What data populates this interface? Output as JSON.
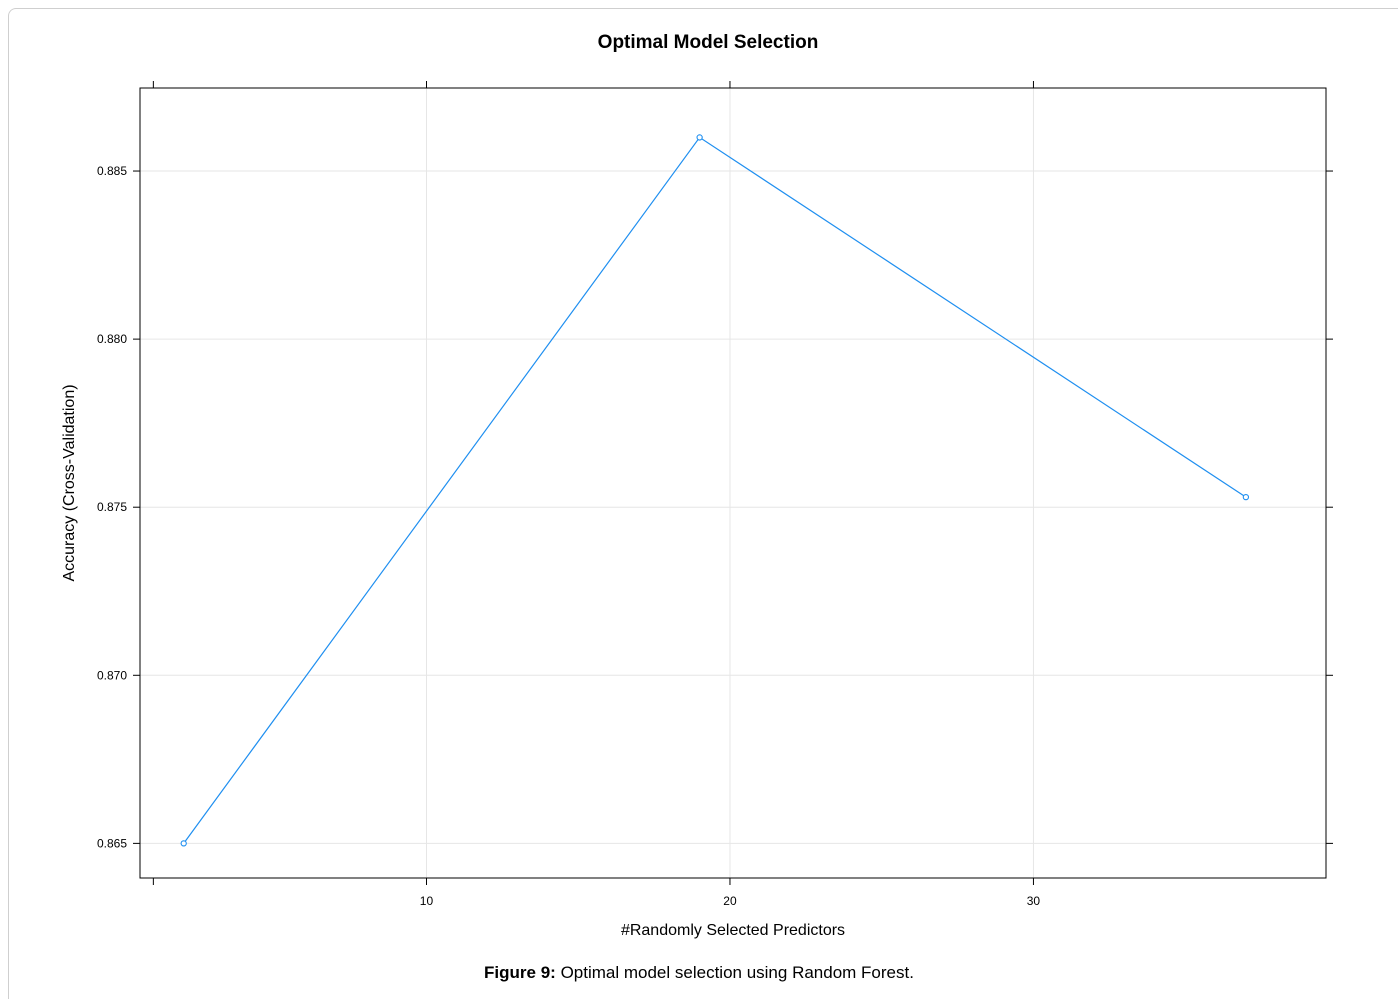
{
  "caption": {
    "label": "Figure 9:",
    "text": " Optimal model selection using Random Forest."
  },
  "chart_data": {
    "type": "line",
    "title": "Optimal Model Selection",
    "xlabel": "#Randomly Selected Predictors",
    "ylabel": "Accuracy (Cross-Validation)",
    "x": [
      2,
      19,
      37
    ],
    "series": [
      {
        "values": [
          0.865,
          0.886,
          0.8753
        ]
      }
    ],
    "xlim": [
      0.56,
      39.64
    ],
    "ylim": [
      0.86397,
      0.88747
    ],
    "xticks": [
      10,
      20,
      30
    ],
    "xtick_labels": [
      "10",
      "20",
      "30"
    ],
    "yticks": [
      0.865,
      0.87,
      0.875,
      0.88,
      0.885
    ],
    "ytick_labels": [
      "0.865",
      "0.870",
      "0.875",
      "0.880",
      "0.885"
    ],
    "grid": true,
    "marker": "open-circle",
    "color": "#1f8ff0",
    "grid_color": "#e6e6e6"
  }
}
